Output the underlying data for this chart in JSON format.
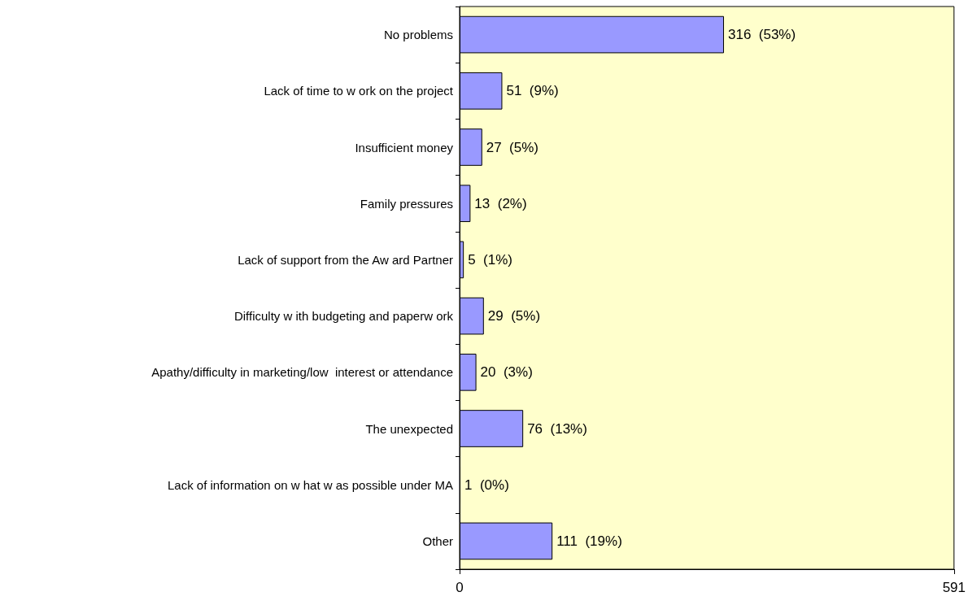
{
  "chart_data": {
    "type": "bar",
    "orientation": "horizontal",
    "categories": [
      "No problems",
      "Lack of time to w ork on the project",
      "Insufficient money",
      "Family pressures",
      "Lack of support from the Aw ard Partner",
      "Difficulty w ith budgeting and paperw ork",
      "Apathy/difficulty in marketing/low  interest or attendance",
      "The unexpected",
      "Lack of information on w hat w as possible under MA",
      "Other"
    ],
    "values": [
      316,
      51,
      27,
      13,
      5,
      29,
      20,
      76,
      1,
      111
    ],
    "value_labels": [
      "316  (53%)",
      "51  (9%)",
      "27  (5%)",
      "13  (2%)",
      "5  (1%)",
      "29  (5%)",
      "20  (3%)",
      "76  (13%)",
      "1  (0%)",
      "111  (19%)"
    ],
    "color": "#9999ff",
    "xlim": [
      0,
      591
    ],
    "xticks": [
      0,
      591
    ],
    "grid": false
  }
}
